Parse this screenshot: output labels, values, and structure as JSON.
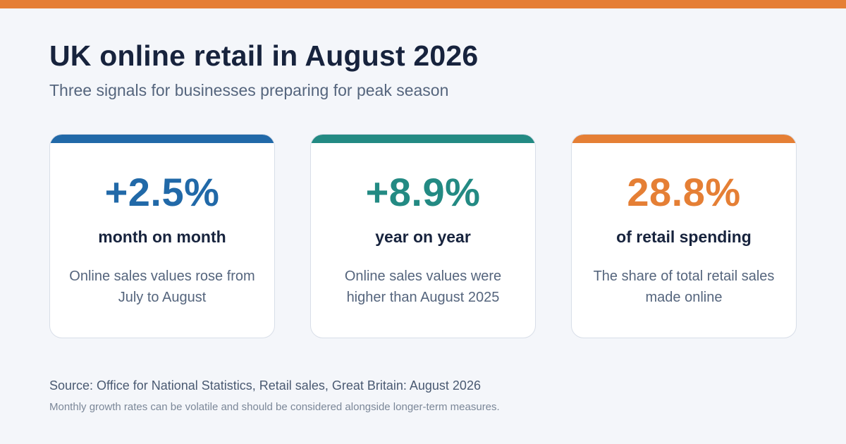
{
  "colors": {
    "accent_top": "#e57f35",
    "blue": "#2169a8",
    "teal": "#238a83",
    "orange": "#e57f35"
  },
  "header": {
    "title": "UK online retail in August 2026",
    "subtitle": "Three signals for businesses preparing for peak season"
  },
  "cards": [
    {
      "value": "+2.5%",
      "label": "month on month",
      "description": "Online sales values rose from July to August",
      "color": "#2169a8"
    },
    {
      "value": "+8.9%",
      "label": "year on year",
      "description": "Online sales values were higher than August 2025",
      "color": "#238a83"
    },
    {
      "value": "28.8%",
      "label": "of retail spending",
      "description": "The share of total retail sales made online",
      "color": "#e57f35"
    }
  ],
  "footer": {
    "source": "Source: Office for National Statistics, Retail sales, Great Britain: August 2026",
    "note": "Monthly growth rates can be volatile and should be considered alongside longer-term measures."
  }
}
